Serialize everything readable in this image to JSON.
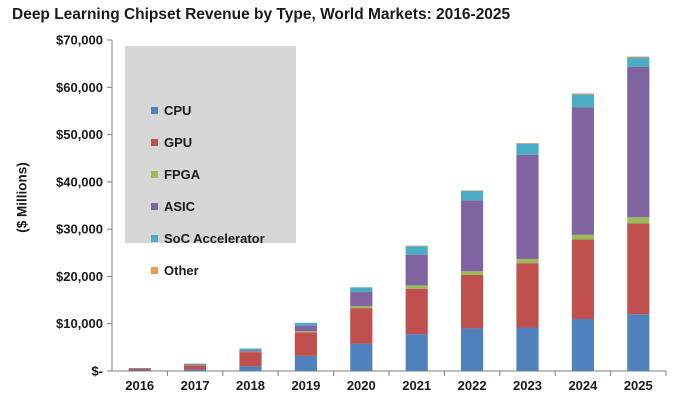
{
  "title": "Deep Learning Chipset Revenue by Type, World Markets: 2016-2025",
  "ylabel": "($ Millions)",
  "chart_data": {
    "type": "bar",
    "stacked": true,
    "title": "Deep Learning Chipset Revenue by Type, World Markets: 2016-2025",
    "xlabel": "",
    "ylabel": "($ Millions)",
    "ylim": [
      0,
      70000
    ],
    "yticks": [
      0,
      10000,
      20000,
      30000,
      40000,
      50000,
      60000,
      70000
    ],
    "ytick_labels": [
      "$-",
      "$10,000",
      "$20,000",
      "$30,000",
      "$40,000",
      "$50,000",
      "$60,000",
      "$70,000"
    ],
    "categories": [
      "2016",
      "2017",
      "2018",
      "2019",
      "2020",
      "2021",
      "2022",
      "2023",
      "2024",
      "2025"
    ],
    "series": [
      {
        "name": "CPU",
        "color": "#4f81bd",
        "values": [
          100,
          300,
          1000,
          3200,
          5800,
          7800,
          9000,
          9200,
          11000,
          12000
        ]
      },
      {
        "name": "GPU",
        "color": "#c0504d",
        "values": [
          450,
          900,
          3000,
          5000,
          7500,
          9600,
          11300,
          13600,
          16800,
          19200
        ]
      },
      {
        "name": "FPGA",
        "color": "#9bbb59",
        "values": [
          20,
          50,
          100,
          200,
          400,
          700,
          800,
          900,
          1000,
          1300
        ]
      },
      {
        "name": "ASIC",
        "color": "#8064a2",
        "values": [
          30,
          150,
          300,
          1200,
          3000,
          6500,
          15000,
          22000,
          27000,
          31800
        ]
      },
      {
        "name": "SoC Accelerator",
        "color": "#4bacc6",
        "values": [
          30,
          150,
          350,
          600,
          1000,
          1800,
          2000,
          2400,
          2700,
          2000
        ]
      },
      {
        "name": "Other",
        "color": "#f79646",
        "values": [
          0,
          0,
          0,
          0,
          0,
          100,
          100,
          100,
          200,
          200
        ]
      }
    ],
    "legend": "top-left"
  }
}
